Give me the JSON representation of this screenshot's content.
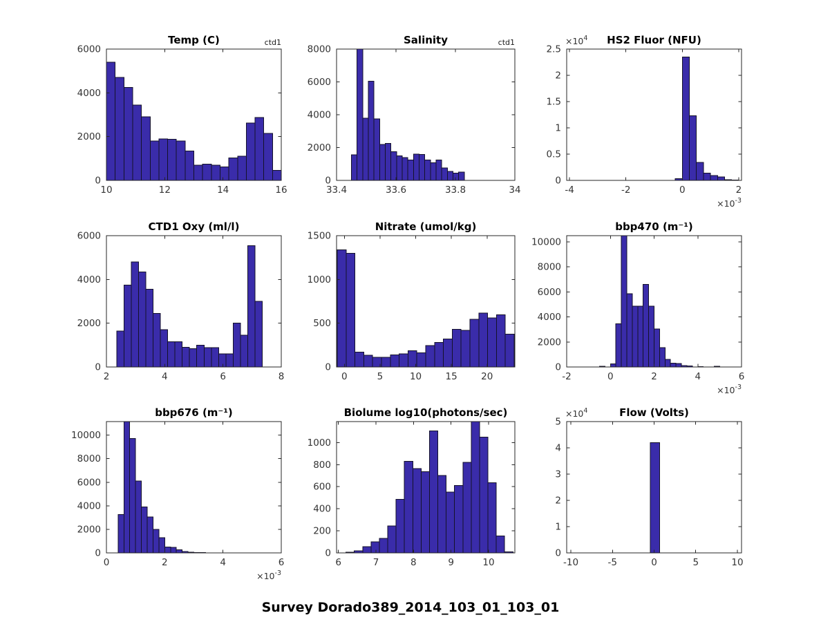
{
  "figure": {
    "suptitle": "Survey Dorado389_2014_103_01_103_01",
    "background": "#ffffff",
    "bar_fill": "#3a2caa",
    "bar_edge": "#141228",
    "axis_color": "#262626",
    "tick_label_color": "#333333",
    "title_color": "#000000",
    "offset_prefix": "×10"
  },
  "chart_data": [
    {
      "id": "temp",
      "type": "histogram",
      "title": "Temp (C)",
      "corner_label": "ctd1",
      "position": {
        "row": 0,
        "col": 0
      },
      "xlim": [
        10,
        16
      ],
      "ylim": [
        0,
        6000
      ],
      "xticks": [
        10,
        12,
        14,
        16
      ],
      "xtick_labels": [
        "10",
        "12",
        "14",
        "16"
      ],
      "yticks": [
        0,
        2000,
        4000,
        6000
      ],
      "ytick_labels": [
        "0",
        "2000",
        "4000",
        "6000"
      ],
      "bin_start": 10.0,
      "bin_width": 0.3,
      "values": [
        5400,
        4700,
        4250,
        3450,
        2900,
        1800,
        1900,
        1880,
        1800,
        1350,
        700,
        750,
        690,
        620,
        1020,
        1100,
        2620,
        2880,
        2140,
        460
      ]
    },
    {
      "id": "salinity",
      "type": "histogram",
      "title": "Salinity",
      "corner_label": "ctd1",
      "position": {
        "row": 0,
        "col": 1
      },
      "xlim": [
        33.4,
        34
      ],
      "ylim": [
        0,
        8000
      ],
      "xticks": [
        33.4,
        33.6,
        33.8,
        34
      ],
      "xtick_labels": [
        "33.4",
        "33.6",
        "33.8",
        "34"
      ],
      "yticks": [
        0,
        2000,
        4000,
        6000,
        8000
      ],
      "ytick_labels": [
        "0",
        "2000",
        "4000",
        "6000",
        "8000"
      ],
      "bin_start": 33.45,
      "bin_width": 0.019,
      "values": [
        1550,
        8000,
        3800,
        6050,
        3750,
        2200,
        2250,
        1750,
        1500,
        1400,
        1250,
        1600,
        1580,
        1250,
        1080,
        1250,
        750,
        550,
        450,
        500
      ]
    },
    {
      "id": "hs2-fluor",
      "type": "histogram",
      "title": "HS2 Fluor (NFU)",
      "corner_label": null,
      "position": {
        "row": 0,
        "col": 2
      },
      "xlim": [
        -0.0041,
        0.0021
      ],
      "ylim": [
        0,
        25000
      ],
      "xticks": [
        -0.004,
        -0.002,
        0,
        0.002
      ],
      "xtick_labels": [
        "-4",
        "-2",
        "0",
        "2"
      ],
      "yticks": [
        0,
        5000,
        10000,
        15000,
        20000,
        25000
      ],
      "ytick_labels": [
        "0",
        "0.5",
        "1",
        "1.5",
        "2",
        "2.5"
      ],
      "x_exp": "-3",
      "y_exp": "4",
      "bin_start": -0.00025,
      "bin_width": 0.00025,
      "values": [
        300,
        23500,
        12300,
        3400,
        1400,
        900,
        650,
        120,
        40
      ]
    },
    {
      "id": "ctd1-oxy",
      "type": "histogram",
      "title": "CTD1 Oxy (ml/l)",
      "corner_label": null,
      "position": {
        "row": 1,
        "col": 0
      },
      "xlim": [
        2,
        8
      ],
      "ylim": [
        0,
        6000
      ],
      "xticks": [
        2,
        4,
        6,
        8
      ],
      "xtick_labels": [
        "2",
        "4",
        "6",
        "8"
      ],
      "yticks": [
        0,
        2000,
        4000,
        6000
      ],
      "ytick_labels": [
        "0",
        "2000",
        "4000",
        "6000"
      ],
      "bin_start": 2.35,
      "bin_width": 0.25,
      "values": [
        1650,
        3750,
        4800,
        4350,
        3550,
        2450,
        1700,
        1150,
        1150,
        900,
        830,
        1000,
        880,
        880,
        600,
        600,
        2000,
        1450,
        5550,
        3000
      ]
    },
    {
      "id": "nitrate",
      "type": "histogram",
      "title": "Nitrate (umol/kg)",
      "corner_label": null,
      "position": {
        "row": 1,
        "col": 1
      },
      "xlim": [
        -1.1,
        23.9
      ],
      "ylim": [
        0,
        1500
      ],
      "xticks": [
        0,
        5,
        10,
        15,
        20
      ],
      "xtick_labels": [
        "0",
        "5",
        "10",
        "15",
        "20"
      ],
      "yticks": [
        0,
        500,
        1000,
        1500
      ],
      "ytick_labels": [
        "0",
        "500",
        "1000",
        "1500"
      ],
      "bin_start": -1.0,
      "bin_width": 1.24,
      "values": [
        1340,
        1300,
        170,
        135,
        110,
        110,
        140,
        150,
        185,
        160,
        245,
        280,
        320,
        430,
        420,
        545,
        615,
        560,
        595,
        375
      ]
    },
    {
      "id": "bbp470",
      "type": "histogram",
      "title": "bbp470 (m⁻¹)",
      "corner_label": null,
      "position": {
        "row": 1,
        "col": 2
      },
      "xlim": [
        -0.002,
        0.006
      ],
      "ylim": [
        0,
        10500
      ],
      "xticks": [
        -0.002,
        0,
        0.002,
        0.004,
        0.006
      ],
      "xtick_labels": [
        "-2",
        "0",
        "2",
        "4",
        "6"
      ],
      "yticks": [
        0,
        2000,
        4000,
        6000,
        8000,
        10000
      ],
      "ytick_labels": [
        "0",
        "2000",
        "4000",
        "6000",
        "8000",
        "10000"
      ],
      "x_exp": "-3",
      "bin_start": -0.0005,
      "bin_width": 0.00025,
      "values": [
        50,
        0,
        250,
        3450,
        10500,
        5850,
        4850,
        4850,
        6600,
        4850,
        3050,
        1550,
        620,
        300,
        280,
        120,
        80,
        0,
        40,
        0,
        0,
        50
      ]
    },
    {
      "id": "bbp676",
      "type": "histogram",
      "title": "bbp676 (m⁻¹)",
      "corner_label": null,
      "position": {
        "row": 2,
        "col": 0
      },
      "xlim": [
        0,
        0.006
      ],
      "ylim": [
        0,
        11150
      ],
      "xticks": [
        0,
        0.002,
        0.004,
        0.006
      ],
      "xtick_labels": [
        "0",
        "2",
        "4",
        "6"
      ],
      "yticks": [
        0,
        2000,
        4000,
        6000,
        8000,
        10000
      ],
      "ytick_labels": [
        "0",
        "2000",
        "4000",
        "6000",
        "8000",
        "10000"
      ],
      "x_exp": "-3",
      "bin_start": 0.0004,
      "bin_width": 0.0002,
      "values": [
        3250,
        11150,
        9700,
        6100,
        3900,
        3050,
        2000,
        1300,
        500,
        480,
        250,
        110,
        50,
        30,
        20,
        10
      ]
    },
    {
      "id": "biolume",
      "type": "histogram",
      "title": "Biolume log10(photons/sec)",
      "corner_label": null,
      "position": {
        "row": 2,
        "col": 1
      },
      "xlim": [
        5.95,
        10.7
      ],
      "ylim": [
        0,
        1190
      ],
      "xticks": [
        6,
        7,
        8,
        9,
        10
      ],
      "xtick_labels": [
        "6",
        "7",
        "8",
        "9",
        "10"
      ],
      "yticks": [
        0,
        200,
        400,
        600,
        800,
        1000
      ],
      "ytick_labels": [
        "0",
        "200",
        "400",
        "600",
        "800",
        "1000"
      ],
      "bin_start": 6.2,
      "bin_width": 0.2225,
      "values": [
        5,
        20,
        55,
        100,
        130,
        245,
        485,
        830,
        765,
        735,
        1105,
        700,
        550,
        610,
        820,
        1190,
        1050,
        635,
        155,
        10
      ]
    },
    {
      "id": "flow",
      "type": "histogram",
      "title": "Flow (Volts)",
      "corner_label": null,
      "position": {
        "row": 2,
        "col": 2
      },
      "xlim": [
        -10.5,
        10.5
      ],
      "ylim": [
        0,
        50000
      ],
      "xticks": [
        -10,
        -5,
        0,
        5,
        10
      ],
      "xtick_labels": [
        "-10",
        "-5",
        "0",
        "5",
        "10"
      ],
      "yticks": [
        0,
        10000,
        20000,
        30000,
        40000,
        50000
      ],
      "ytick_labels": [
        "0",
        "1",
        "2",
        "3",
        "4",
        "5"
      ],
      "y_exp": "4",
      "bin_start": -0.45,
      "bin_width": 1.1,
      "values": [
        42000
      ]
    }
  ]
}
